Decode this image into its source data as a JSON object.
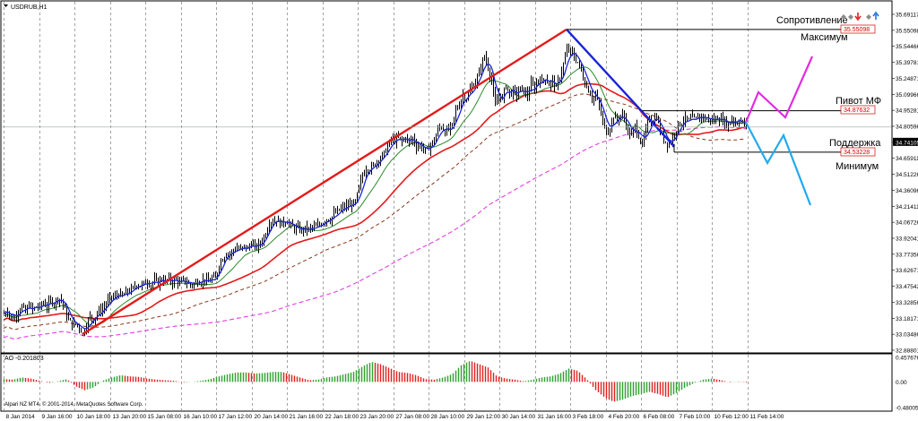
{
  "window": {
    "symbol_title": "USDRUB,H1",
    "indicator_title": "AO -0.201803",
    "copyright": "Alpari NZ MT4, © 2001-2014, MetaQuotes Software Corp."
  },
  "annotations": {
    "resistance": "Сопротивление",
    "maximum": "Максимум",
    "pivot": "Пивот МФ",
    "support": "Поддержка",
    "minimum": "Минимум"
  },
  "levels": {
    "resistance": "35.55098",
    "pivot": "34.87632",
    "support": "34.53228",
    "current": "34.74105"
  },
  "colors": {
    "trend_up": "#e41a1a",
    "trend_down": "#1a24d8",
    "forecast_up": "#e02de0",
    "forecast_down": "#22aaee",
    "ma_fast": "#1a24d8",
    "ma_green": "#2a8a2a",
    "ma_red": "#e41a1a",
    "ma_brown": "#8b3a1a",
    "ma_magenta": "#e040e0",
    "ao_up": "#2fa02f",
    "ao_down": "#e02020",
    "level_label": "#d40000"
  },
  "toolbar_icons": [
    "diamond-icon",
    "diamond-icon",
    "arrow-down-icon",
    "diamond-icon",
    "arrow-up-icon"
  ],
  "chart_data": {
    "type": "candlestick",
    "title": "USDRUB,H1",
    "price_axis": [
      "35.69117",
      "35.55098",
      "35.54466",
      "35.39781",
      "35.24871",
      "35.09966",
      "34.95281",
      "34.80596",
      "34.74105",
      "34.65911",
      "34.51226",
      "34.36096",
      "34.21411",
      "34.06726",
      "33.92041",
      "33.77356",
      "33.62671",
      "33.47542",
      "33.32856",
      "33.18171",
      "33.03486",
      "32.88801"
    ],
    "time_axis": [
      "8 Jan 2014",
      "9 Jan 16:00",
      "10 Jan 18:00",
      "13 Jan 20:00",
      "15 Jan 08:00",
      "16 Jan 10:00",
      "17 Jan 12:00",
      "20 Jan 14:00",
      "21 Jan 16:00",
      "22 Jan 18:00",
      "23 Jan 20:00",
      "27 Jan 08:00",
      "28 Jan 10:00",
      "29 Jan 12:00",
      "30 Jan 14:00",
      "31 Jan 16:00",
      "3 Feb 18:00",
      "4 Feb 20:00",
      "6 Feb 08:00",
      "7 Feb 10:00",
      "10 Feb 12:00",
      "11 Feb 14:00"
    ],
    "ylim": [
      32.88801,
      35.69117
    ],
    "path_points": [
      [
        0,
        33.19
      ],
      [
        4,
        33.22
      ],
      [
        8,
        33.15
      ],
      [
        12,
        33.16
      ],
      [
        16,
        33.22
      ],
      [
        20,
        33.25
      ],
      [
        24,
        33.2
      ],
      [
        28,
        33.27
      ],
      [
        32,
        33.22
      ],
      [
        36,
        33.25
      ],
      [
        40,
        33.25
      ],
      [
        44,
        33.28
      ],
      [
        48,
        33.25
      ],
      [
        52,
        33.3
      ],
      [
        56,
        33.28
      ],
      [
        60,
        33.32
      ],
      [
        64,
        33.31
      ],
      [
        68,
        33.22
      ],
      [
        72,
        33.14
      ],
      [
        76,
        33.1
      ],
      [
        80,
        33.11
      ],
      [
        84,
        33.08
      ],
      [
        88,
        33.02
      ],
      [
        92,
        33.1
      ],
      [
        96,
        33.17
      ],
      [
        100,
        33.14
      ],
      [
        104,
        33.2
      ],
      [
        108,
        33.22
      ],
      [
        112,
        33.25
      ],
      [
        116,
        33.3
      ],
      [
        120,
        33.33
      ],
      [
        124,
        33.33
      ],
      [
        128,
        33.36
      ],
      [
        132,
        33.33
      ],
      [
        136,
        33.37
      ],
      [
        140,
        33.38
      ],
      [
        144,
        33.4
      ],
      [
        148,
        33.44
      ],
      [
        152,
        33.42
      ],
      [
        156,
        33.44
      ],
      [
        160,
        33.46
      ],
      [
        164,
        33.43
      ],
      [
        168,
        33.47
      ],
      [
        172,
        33.45
      ],
      [
        176,
        33.48
      ],
      [
        180,
        33.46
      ],
      [
        184,
        33.48
      ],
      [
        188,
        33.45
      ],
      [
        192,
        33.48
      ],
      [
        196,
        33.44
      ],
      [
        200,
        33.47
      ],
      [
        204,
        33.45
      ],
      [
        208,
        33.43
      ],
      [
        212,
        33.44
      ],
      [
        216,
        33.46
      ],
      [
        220,
        33.46
      ],
      [
        224,
        33.48
      ],
      [
        228,
        33.45
      ],
      [
        232,
        33.49
      ],
      [
        236,
        33.48
      ],
      [
        240,
        33.6
      ],
      [
        244,
        33.65
      ],
      [
        248,
        33.7
      ],
      [
        252,
        33.68
      ],
      [
        256,
        33.72
      ],
      [
        260,
        33.74
      ],
      [
        264,
        33.72
      ],
      [
        268,
        33.75
      ],
      [
        272,
        33.73
      ],
      [
        276,
        33.78
      ],
      [
        280,
        33.74
      ],
      [
        284,
        33.76
      ],
      [
        288,
        33.8
      ],
      [
        292,
        33.86
      ],
      [
        296,
        33.95
      ],
      [
        300,
        33.96
      ],
      [
        304,
        33.97
      ],
      [
        308,
        33.94
      ],
      [
        312,
        33.95
      ],
      [
        316,
        33.96
      ],
      [
        320,
        33.92
      ],
      [
        324,
        33.9
      ],
      [
        328,
        33.9
      ],
      [
        332,
        33.88
      ],
      [
        336,
        33.9
      ],
      [
        340,
        33.89
      ],
      [
        344,
        33.91
      ],
      [
        348,
        33.91
      ],
      [
        352,
        33.93
      ],
      [
        356,
        33.95
      ],
      [
        360,
        33.98
      ],
      [
        364,
        33.97
      ],
      [
        368,
        34.02
      ],
      [
        372,
        34.04
      ],
      [
        376,
        34.06
      ],
      [
        380,
        34.08
      ],
      [
        384,
        34.09
      ],
      [
        388,
        34.1
      ],
      [
        392,
        34.11
      ],
      [
        396,
        34.24
      ],
      [
        400,
        34.34
      ],
      [
        404,
        34.4
      ],
      [
        408,
        34.39
      ],
      [
        412,
        34.42
      ],
      [
        416,
        34.46
      ],
      [
        420,
        34.49
      ],
      [
        424,
        34.52
      ],
      [
        428,
        34.58
      ],
      [
        432,
        34.64
      ],
      [
        436,
        34.63
      ],
      [
        440,
        34.65
      ],
      [
        444,
        34.62
      ],
      [
        448,
        34.66
      ],
      [
        452,
        34.61
      ],
      [
        456,
        34.65
      ],
      [
        460,
        34.58
      ],
      [
        464,
        34.59
      ],
      [
        468,
        34.56
      ],
      [
        472,
        34.54
      ],
      [
        476,
        34.6
      ],
      [
        480,
        34.63
      ],
      [
        484,
        34.72
      ],
      [
        488,
        34.75
      ],
      [
        492,
        34.7
      ],
      [
        496,
        34.72
      ],
      [
        500,
        34.75
      ],
      [
        504,
        34.88
      ],
      [
        508,
        34.93
      ],
      [
        512,
        35.01
      ],
      [
        516,
        34.98
      ],
      [
        520,
        35.05
      ],
      [
        524,
        35.09
      ],
      [
        528,
        35.15
      ],
      [
        532,
        35.24
      ],
      [
        536,
        35.33
      ],
      [
        540,
        35.24
      ],
      [
        544,
        35.12
      ],
      [
        548,
        34.91
      ],
      [
        552,
        35.02
      ],
      [
        556,
        34.97
      ],
      [
        560,
        35.1
      ],
      [
        564,
        35.01
      ],
      [
        568,
        35.04
      ],
      [
        572,
        35.01
      ],
      [
        576,
        35.06
      ],
      [
        580,
        35.04
      ],
      [
        584,
        35.0
      ],
      [
        588,
        35.1
      ],
      [
        592,
        35.06
      ],
      [
        596,
        35.14
      ],
      [
        600,
        35.12
      ],
      [
        604,
        35.15
      ],
      [
        608,
        35.09
      ],
      [
        612,
        35.13
      ],
      [
        616,
        35.06
      ],
      [
        620,
        35.16
      ],
      [
        624,
        35.26
      ],
      [
        628,
        35.38
      ],
      [
        632,
        35.37
      ],
      [
        636,
        35.32
      ],
      [
        640,
        35.28
      ],
      [
        644,
        35.21
      ],
      [
        648,
        35.1
      ],
      [
        652,
        35.05
      ],
      [
        656,
        34.98
      ],
      [
        660,
        35.0
      ],
      [
        664,
        34.92
      ],
      [
        668,
        34.78
      ],
      [
        672,
        34.7
      ],
      [
        676,
        34.74
      ],
      [
        680,
        34.83
      ],
      [
        684,
        34.8
      ],
      [
        688,
        34.84
      ],
      [
        692,
        34.82
      ],
      [
        696,
        34.7
      ],
      [
        700,
        34.67
      ],
      [
        704,
        34.75
      ],
      [
        708,
        34.67
      ],
      [
        712,
        34.58
      ],
      [
        716,
        34.72
      ],
      [
        720,
        34.82
      ],
      [
        724,
        34.79
      ],
      [
        728,
        34.83
      ],
      [
        732,
        34.7
      ],
      [
        736,
        34.64
      ],
      [
        740,
        34.6
      ],
      [
        744,
        34.62
      ],
      [
        748,
        34.69
      ],
      [
        752,
        34.76
      ],
      [
        756,
        34.78
      ],
      [
        760,
        34.81
      ],
      [
        764,
        34.79
      ],
      [
        768,
        34.82
      ],
      [
        772,
        34.8
      ],
      [
        776,
        34.84
      ],
      [
        780,
        34.82
      ],
      [
        784,
        34.8
      ],
      [
        788,
        34.81
      ],
      [
        792,
        34.79
      ],
      [
        796,
        34.82
      ],
      [
        800,
        34.8
      ],
      [
        804,
        34.79
      ],
      [
        808,
        34.75
      ],
      [
        812,
        34.82
      ],
      [
        816,
        34.77
      ],
      [
        820,
        34.8
      ],
      [
        824,
        34.78
      ],
      [
        828,
        34.75
      ]
    ],
    "ao_points": [
      [
        0,
        0.05
      ],
      [
        10,
        0.04
      ],
      [
        20,
        0.08
      ],
      [
        30,
        0.06
      ],
      [
        40,
        0.02
      ],
      [
        50,
        -0.02
      ],
      [
        60,
        0.01
      ],
      [
        70,
        0.05
      ],
      [
        80,
        -0.08
      ],
      [
        90,
        -0.15
      ],
      [
        100,
        -0.1
      ],
      [
        110,
        0.02
      ],
      [
        120,
        0.08
      ],
      [
        130,
        0.12
      ],
      [
        140,
        0.1
      ],
      [
        150,
        0.09
      ],
      [
        160,
        0.06
      ],
      [
        170,
        0.04
      ],
      [
        180,
        0.03
      ],
      [
        190,
        0.02
      ],
      [
        200,
        -0.01
      ],
      [
        210,
        0.0
      ],
      [
        220,
        0.02
      ],
      [
        230,
        0.05
      ],
      [
        240,
        0.1
      ],
      [
        250,
        0.14
      ],
      [
        260,
        0.17
      ],
      [
        270,
        0.17
      ],
      [
        280,
        0.15
      ],
      [
        290,
        0.16
      ],
      [
        300,
        0.18
      ],
      [
        310,
        0.18
      ],
      [
        320,
        0.13
      ],
      [
        330,
        0.08
      ],
      [
        340,
        0.03
      ],
      [
        350,
        0.04
      ],
      [
        360,
        0.08
      ],
      [
        370,
        0.1
      ],
      [
        380,
        0.14
      ],
      [
        390,
        0.18
      ],
      [
        400,
        0.28
      ],
      [
        410,
        0.36
      ],
      [
        420,
        0.32
      ],
      [
        430,
        0.25
      ],
      [
        440,
        0.18
      ],
      [
        450,
        0.16
      ],
      [
        460,
        0.12
      ],
      [
        470,
        0.05
      ],
      [
        480,
        0.04
      ],
      [
        490,
        0.08
      ],
      [
        500,
        0.14
      ],
      [
        510,
        0.3
      ],
      [
        520,
        0.38
      ],
      [
        530,
        0.32
      ],
      [
        540,
        0.26
      ],
      [
        550,
        0.1
      ],
      [
        560,
        0.06
      ],
      [
        570,
        0.04
      ],
      [
        580,
        0.01
      ],
      [
        590,
        0.04
      ],
      [
        600,
        0.08
      ],
      [
        610,
        0.1
      ],
      [
        620,
        0.15
      ],
      [
        630,
        0.24
      ],
      [
        640,
        0.2
      ],
      [
        650,
        0.05
      ],
      [
        660,
        -0.15
      ],
      [
        670,
        -0.28
      ],
      [
        680,
        -0.36
      ],
      [
        690,
        -0.32
      ],
      [
        700,
        -0.26
      ],
      [
        710,
        -0.22
      ],
      [
        720,
        -0.18
      ],
      [
        730,
        -0.22
      ],
      [
        740,
        -0.28
      ],
      [
        750,
        -0.2
      ],
      [
        760,
        -0.1
      ],
      [
        770,
        -0.02
      ],
      [
        780,
        0.04
      ],
      [
        790,
        0.06
      ],
      [
        800,
        0.03
      ],
      [
        810,
        -0.01
      ],
      [
        820,
        0.01
      ],
      [
        830,
        -0.02
      ]
    ],
    "ao_axis": [
      "0.457676",
      "0.00",
      "-0.480052"
    ],
    "ao_ylim": [
      -0.480052,
      0.457676
    ]
  }
}
